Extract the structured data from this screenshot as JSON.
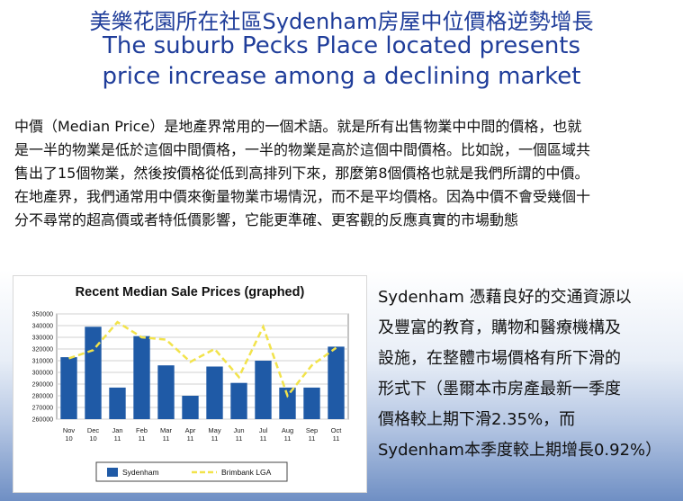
{
  "header": {
    "title_zh": "美樂花園所在社區Sydenham房屋中位價格逆勢增長",
    "title_en_line1": "The suburb Pecks Place located presents",
    "title_en_line2": "price increase among a declining market"
  },
  "intro": {
    "lines": [
      "中價（Median Price）是地產界常用的一個术語。就是所有出售物業中中間的價格，也就",
      "是一半的物業是低於這個中間價格，一半的物業是高於這個中間價格。比如說，一個區域共",
      "售出了15個物業，然後按價格從低到高排列下來，那麼第8個價格也就是我們所謂的中價。",
      "在地產界，我們通常用中價來衡量物業市場情況，而不是平均價格。因為中價不會受幾個十",
      "分不尋常的超高價或者特低價影響，它能更準確、更客觀的反應真實的市場動態"
    ]
  },
  "side": {
    "lines": [
      "Sydenham 憑藉良好的交通資源以",
      "及豐富的教育，購物和醫療機構及",
      "設施，在整體市場價格有所下滑的",
      "形式下（墨爾本市房產最新一季度",
      "價格較上期下滑2.35%，而",
      "Sydenham本季度較上期增長0.92%）"
    ]
  },
  "chart_data": {
    "type": "bar",
    "title": "Recent Median Sale Prices (graphed)",
    "xlabel": "",
    "ylabel": "",
    "ylim": [
      260000,
      350000
    ],
    "yticks": [
      "350000",
      "340000",
      "330000",
      "320000",
      "310000",
      "300000",
      "290000",
      "280000",
      "270000",
      "260000"
    ],
    "categories": [
      [
        "Nov",
        "10"
      ],
      [
        "Dec",
        "10"
      ],
      [
        "Jan",
        "11"
      ],
      [
        "Feb",
        "11"
      ],
      [
        "Mar",
        "11"
      ],
      [
        "Apr",
        "11"
      ],
      [
        "May",
        "11"
      ],
      [
        "Jun",
        "11"
      ],
      [
        "Jul",
        "11"
      ],
      [
        "Aug",
        "11"
      ],
      [
        "Sep",
        "11"
      ],
      [
        "Oct",
        "11"
      ]
    ],
    "series": [
      {
        "name": "Sydenham",
        "type": "bar",
        "color": "#1f5aa6",
        "values": [
          313000,
          339000,
          287000,
          331000,
          306000,
          280000,
          305000,
          291000,
          310000,
          287000,
          287000,
          322000
        ]
      },
      {
        "name": "Brimbank LGA",
        "type": "line",
        "color": "#f2e34b",
        "values": [
          312000,
          319000,
          343000,
          330000,
          328000,
          309000,
          320000,
          296000,
          339000,
          280000,
          306000,
          321000
        ]
      }
    ],
    "grid": true,
    "legend": "bottom"
  }
}
